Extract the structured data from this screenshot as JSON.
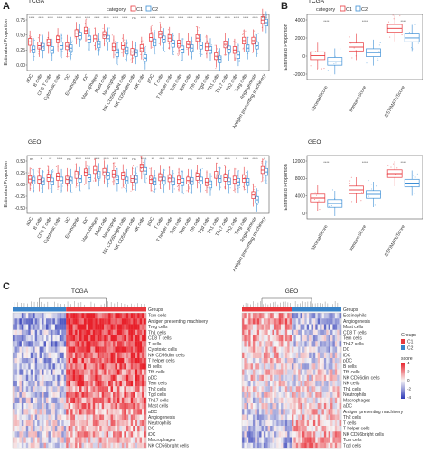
{
  "panel_letters": {
    "a": "A",
    "b": "B",
    "c": "C"
  },
  "colors": {
    "c1": "#e8383d",
    "c2": "#3d8fd6",
    "hm_low": "#2d3ab8",
    "hm_mid": "#f7f5f5",
    "hm_high": "#e8202a",
    "groups_c1": "#e8383d",
    "groups_c2": "#3a84c9"
  },
  "chart_data": [
    {
      "id": "A_top",
      "type": "box",
      "panel_title": "TCGA",
      "ylabel": "Estimated Proportion",
      "legend": {
        "title": "category",
        "items": [
          "C1",
          "C2"
        ],
        "placement": "top-center"
      },
      "y_ticks": [
        "0.75",
        "0.50",
        "0.25",
        "0.00"
      ],
      "categories": [
        "aDC",
        "B cells",
        "CD8 T cells",
        "Cytotoxic cells",
        "DC",
        "Eosinophils",
        "iDC",
        "Macrophages",
        "Mast cells",
        "Neutrophils",
        "NK CD56bright cells",
        "NK CD56dim cells",
        "NK cells",
        "pDC",
        "T cells",
        "T helper cells",
        "Tcm cells",
        "Tem cells",
        "Tfh cells",
        "Tgd cells",
        "Th1 cells",
        "Th17 cells",
        "Th2 cells",
        "Treg cells",
        "Angiogenesis",
        "Antigen presenting machinery"
      ],
      "significance": [
        "****",
        "****",
        "****",
        "****",
        "****",
        "****",
        "****",
        "****",
        "****",
        "****",
        "****",
        "ns",
        "****",
        "****",
        "****",
        "****",
        "****",
        "****",
        "****",
        "****",
        "****",
        "****",
        "****",
        "****",
        "****",
        "****"
      ],
      "ylim": [
        0,
        0.9
      ],
      "series": [
        {
          "name": "C1",
          "median": [
            0.46,
            0.4,
            0.45,
            0.5,
            0.39,
            0.6,
            0.64,
            0.51,
            0.57,
            0.38,
            0.4,
            0.3,
            0.36,
            0.53,
            0.58,
            0.52,
            0.43,
            0.42,
            0.52,
            0.38,
            0.23,
            0.42,
            0.33,
            0.48,
            0.48,
            0.81
          ]
        },
        {
          "name": "C2",
          "median": [
            0.34,
            0.38,
            0.33,
            0.4,
            0.36,
            0.56,
            0.5,
            0.42,
            0.51,
            0.28,
            0.32,
            0.28,
            0.2,
            0.45,
            0.5,
            0.43,
            0.34,
            0.36,
            0.4,
            0.33,
            0.18,
            0.34,
            0.25,
            0.36,
            0.4,
            0.77
          ]
        }
      ]
    },
    {
      "id": "A_bottom",
      "type": "box",
      "panel_title": "GEO",
      "ylabel": "Estimated Proportion",
      "y_ticks": [
        "0.50",
        "0.25",
        "0.00",
        "-0.25",
        "-0.50"
      ],
      "categories": [
        "aDC",
        "B cells",
        "CD8 T cells",
        "Cytotoxic cells",
        "DC",
        "Eosinophils",
        "iDC",
        "Macrophages",
        "Mast cells",
        "Neutrophils",
        "NK CD56bright cells",
        "NK CD56dim cells",
        "NK cells",
        "pDC",
        "T cells",
        "T helper cells",
        "Tcm cells",
        "Tem cells",
        "Tfh cells",
        "Tgd cells",
        "Th1 cells",
        "Th17 cells",
        "Th2 cells",
        "Treg cells",
        "Angiogenesis",
        "Antigen presenting machinery"
      ],
      "significance": [
        "ns",
        "*",
        "**",
        "****",
        "ns",
        "****",
        "****",
        "****",
        "****",
        "****",
        "****",
        "ns",
        "****",
        "**",
        "****",
        "****",
        "****",
        "ns",
        "****",
        "****",
        "**",
        "****",
        "*",
        "****",
        "****",
        "*"
      ],
      "ylim": [
        -0.6,
        0.6
      ],
      "series": [
        {
          "name": "C1",
          "median": [
            0.11,
            0.1,
            0.14,
            0.16,
            0.1,
            0.2,
            0.25,
            0.3,
            0.26,
            0.22,
            0.18,
            0.12,
            0.35,
            0.1,
            0.15,
            0.13,
            0.1,
            0.08,
            0.16,
            0.05,
            0.2,
            0.14,
            0.1,
            0.12,
            -0.22,
            0.3
          ]
        },
        {
          "name": "C2",
          "median": [
            0.08,
            0.06,
            0.06,
            0.08,
            0.08,
            0.12,
            0.14,
            0.2,
            0.18,
            0.1,
            0.08,
            0.11,
            0.28,
            0.06,
            0.08,
            0.06,
            0.05,
            0.07,
            0.08,
            0.0,
            0.12,
            0.06,
            0.05,
            0.05,
            -0.32,
            0.26
          ]
        }
      ]
    },
    {
      "id": "B_top",
      "type": "box",
      "panel_title": "TCGA",
      "ylabel": "Estimated Proportion",
      "legend": {
        "title": "category",
        "items": [
          "C1",
          "C2"
        ],
        "placement": "top"
      },
      "y_ticks": [
        "4000",
        "2000",
        "0",
        "-2000"
      ],
      "categories": [
        "StromalScore",
        "ImmuneScore",
        "ESTIMATEScore"
      ],
      "significance": [
        "****",
        "****",
        "****"
      ],
      "ylim": [
        -2500,
        5000
      ],
      "series": [
        {
          "name": "C1",
          "median": [
            250,
            1250,
            3400
          ]
        },
        {
          "name": "C2",
          "median": [
            -400,
            600,
            2300
          ]
        }
      ]
    },
    {
      "id": "B_bottom",
      "type": "box",
      "panel_title": "GEO",
      "ylabel": "Estimated Proportion",
      "y_ticks": [
        "12000",
        "8000",
        "4000",
        "0"
      ],
      "categories": [
        "StromalScore",
        "ImmuneScore",
        "ESTIMATEScore"
      ],
      "significance": [
        "****",
        "****",
        "****"
      ],
      "ylim": [
        -1000,
        13000
      ],
      "series": [
        {
          "name": "C1",
          "median": [
            3600,
            5400,
            9000
          ]
        },
        {
          "name": "C2",
          "median": [
            2400,
            4400,
            6900
          ]
        }
      ]
    },
    {
      "id": "C_left",
      "type": "heatmap",
      "panel_title": "TCGA",
      "group_label": "Groups",
      "rows": [
        "Tcm cells",
        "Antigen presenting machinery",
        "Treg cells",
        "Th1 cells",
        "CD8 T cells",
        "T cells",
        "Cytotoxic cells",
        "NK CD56dim cells",
        "T helper cells",
        "B cells",
        "Tfh cells",
        "pDC",
        "Tem cells",
        "Th2 cells",
        "Tgd cells",
        "Th17 cells",
        "Mast cells",
        "aDC",
        "Angiogenesis",
        "Neutrophils",
        "DC",
        "iDC",
        "Macrophages",
        "NK CD56bright cells"
      ],
      "c1_fraction": 0.4,
      "row_mean_c1": [
        -0.4,
        -0.5,
        -0.4,
        -0.3,
        -0.4,
        -0.4,
        -0.3,
        -0.3,
        -0.3,
        -0.3,
        -0.3,
        -0.3,
        -0.2,
        -0.2,
        -0.2,
        -0.2,
        -0.2,
        -0.1,
        -0.1,
        -0.1,
        -0.1,
        -0.1,
        -0.1,
        0.0
      ],
      "row_mean_c2": [
        0.9,
        1.0,
        0.9,
        0.9,
        0.9,
        0.8,
        0.8,
        0.7,
        0.7,
        0.7,
        0.6,
        0.6,
        0.6,
        0.5,
        0.5,
        0.5,
        0.4,
        0.4,
        0.3,
        0.3,
        0.3,
        0.3,
        0.2,
        0.2
      ]
    },
    {
      "id": "C_right",
      "type": "heatmap",
      "panel_title": "GEO",
      "group_label": "Groups",
      "rows": [
        "Eosinophils",
        "Angiogenesis",
        "Mast cells",
        "CD8 T cells",
        "Tem cells",
        "Th17 cells",
        "DC",
        "iDC",
        "pDC",
        "B cells",
        "Tfh cells",
        "NK CD56dim cells",
        "NK cells",
        "Th1 cells",
        "Neutrophils",
        "Macrophages",
        "aDC",
        "Antigen presenting machinery",
        "Th2 cells",
        "T cells",
        "T helper cells",
        "NK CD56bright cells",
        "Tcm cells",
        "Tgd cells"
      ],
      "c1_fraction": 0.5,
      "row_mean_c1": [
        0.4,
        0.4,
        0.3,
        0.3,
        0.3,
        0.2,
        0.2,
        0.2,
        0.1,
        0.1,
        0.1,
        0.1,
        0.0,
        0.0,
        0.0,
        -0.1,
        -0.1,
        -0.1,
        -0.2,
        -0.2,
        -0.2,
        -0.3,
        -0.3,
        -0.3
      ],
      "row_mean_c2": [
        -0.3,
        -0.3,
        -0.3,
        -0.2,
        -0.2,
        -0.2,
        -0.2,
        -0.1,
        -0.1,
        -0.1,
        0.0,
        0.0,
        0.0,
        0.1,
        0.1,
        0.1,
        0.2,
        0.2,
        0.2,
        0.3,
        0.3,
        0.3,
        0.4,
        0.4
      ],
      "legend": {
        "groups_title": "Groups",
        "groups": [
          "C1",
          "C2"
        ],
        "score_title": "score",
        "score_ticks": [
          "4",
          "2",
          "0",
          "-2",
          "-4"
        ]
      }
    }
  ]
}
